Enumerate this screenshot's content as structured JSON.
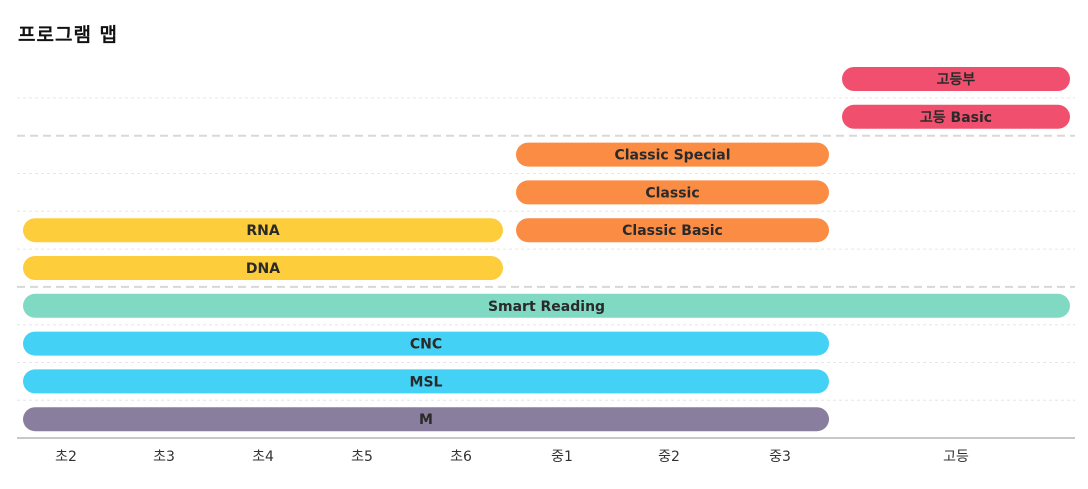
{
  "title": "프로그램 맵",
  "chart_data": {
    "type": "bar",
    "orientation": "horizontal-range",
    "categories": [
      "초2",
      "초3",
      "초4",
      "초5",
      "초6",
      "중1",
      "중2",
      "중3",
      "고등"
    ],
    "rows": [
      {
        "label": "고등부",
        "start": "고등",
        "end": "고등",
        "color": "#f0506e"
      },
      {
        "label": "고등 Basic",
        "start": "고등",
        "end": "고등",
        "color": "#f0506e"
      },
      {
        "label": "Classic Special",
        "start": "중1",
        "end": "중3",
        "color": "#fb8c44"
      },
      {
        "label": "Classic",
        "start": "중1",
        "end": "중3",
        "color": "#fb8c44"
      },
      {
        "label": "RNA",
        "start": "초2",
        "end": "초6",
        "color": "#fdcd3c",
        "label2": "Classic Basic",
        "start2": "중1",
        "end2": "중3",
        "color2": "#fb8c44"
      },
      {
        "label": "DNA",
        "start": "초2",
        "end": "초6",
        "color": "#fdcd3c"
      },
      {
        "label": "Smart Reading",
        "start": "초2",
        "end": "고등",
        "color": "#80d9c3"
      },
      {
        "label": "CNC",
        "start": "초2",
        "end": "중3",
        "color": "#43d1f5"
      },
      {
        "label": "MSL",
        "start": "초2",
        "end": "중3",
        "color": "#43d1f5"
      },
      {
        "label": "M",
        "start": "초2",
        "end": "중3",
        "color": "#8a7e9e"
      }
    ],
    "group_separators_after_rows": [
      1,
      5
    ],
    "grid": true
  }
}
